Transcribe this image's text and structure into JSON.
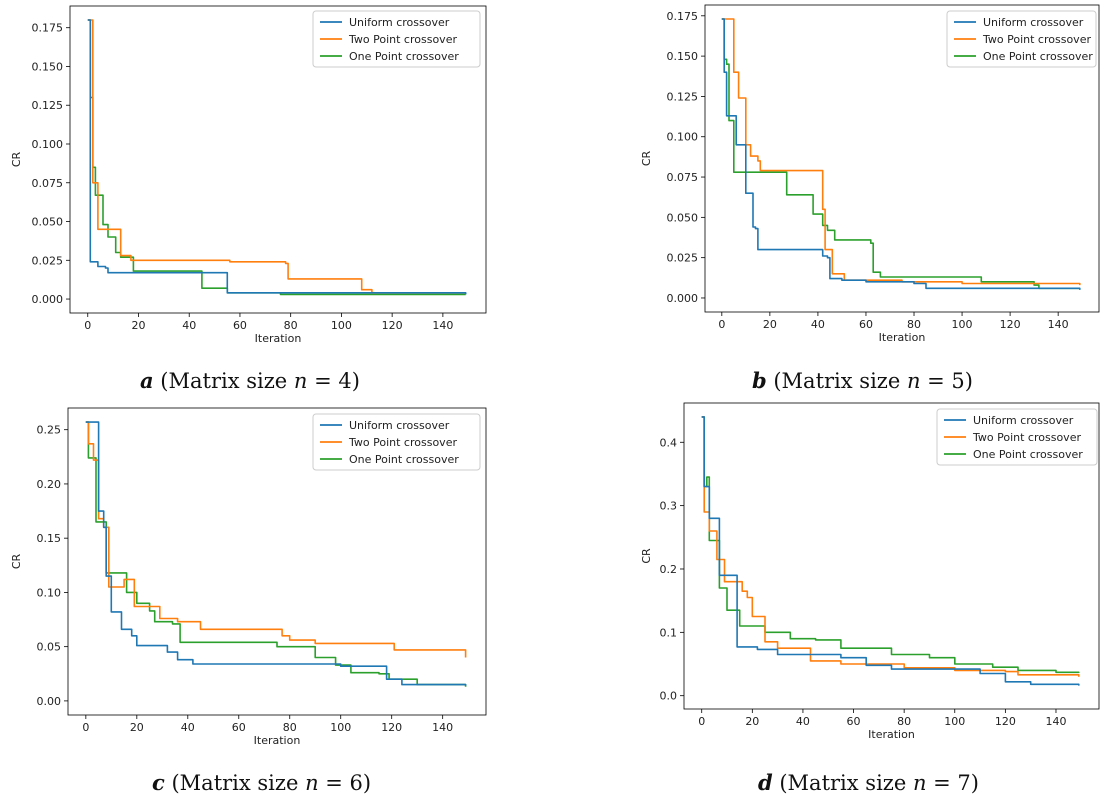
{
  "colors": {
    "Uniform crossover": "#1f77b4",
    "Two Point crossover": "#ff7f0e",
    "One Point crossover": "#2ca02c"
  },
  "chart_data": [
    {
      "type": "line",
      "xlabel": "Iteration",
      "ylabel": "CR",
      "xlim": [
        -7,
        157
      ],
      "ylim": [
        -0.009,
        0.189
      ],
      "xticks": [
        0,
        20,
        40,
        60,
        80,
        100,
        120,
        140
      ],
      "yticks": [
        0.0,
        0.025,
        0.05,
        0.075,
        0.1,
        0.125,
        0.15,
        0.175
      ],
      "ytick_decimals": 3,
      "legend": "top-right",
      "caption": {
        "letter": "a",
        "text": " (Matrix size ",
        "var": "n",
        "suffix": " = 4)"
      },
      "series": [
        {
          "name": "Uniform crossover",
          "points": [
            [
              0,
              0.18
            ],
            [
              1,
              0.024
            ],
            [
              3,
              0.024
            ],
            [
              4,
              0.021
            ],
            [
              7,
              0.02
            ],
            [
              8,
              0.017
            ],
            [
              54,
              0.017
            ],
            [
              55,
              0.004
            ],
            [
              149,
              0.003
            ]
          ]
        },
        {
          "name": "Two Point crossover",
          "points": [
            [
              0,
              0.18
            ],
            [
              2,
              0.075
            ],
            [
              4,
              0.045
            ],
            [
              12,
              0.045
            ],
            [
              13,
              0.028
            ],
            [
              17,
              0.025
            ],
            [
              55,
              0.025
            ],
            [
              56,
              0.024
            ],
            [
              78,
              0.023
            ],
            [
              79,
              0.013
            ],
            [
              107,
              0.013
            ],
            [
              108,
              0.006
            ],
            [
              112,
              0.004
            ],
            [
              149,
              0.004
            ]
          ]
        },
        {
          "name": "One Point crossover",
          "points": [
            [
              0,
              0.18
            ],
            [
              1,
              0.13
            ],
            [
              2,
              0.085
            ],
            [
              3,
              0.067
            ],
            [
              5,
              0.067
            ],
            [
              6,
              0.048
            ],
            [
              8,
              0.04
            ],
            [
              10,
              0.04
            ],
            [
              11,
              0.03
            ],
            [
              13,
              0.027
            ],
            [
              17,
              0.027
            ],
            [
              18,
              0.018
            ],
            [
              44,
              0.018
            ],
            [
              45,
              0.007
            ],
            [
              54,
              0.007
            ],
            [
              55,
              0.004
            ],
            [
              75,
              0.004
            ],
            [
              76,
              0.003
            ],
            [
              149,
              0.003
            ]
          ]
        }
      ]
    },
    {
      "type": "line",
      "xlabel": "Iteration",
      "ylabel": "CR",
      "xlim": [
        -7,
        157
      ],
      "ylim": [
        -0.0087,
        0.1817
      ],
      "xticks": [
        0,
        20,
        40,
        60,
        80,
        100,
        120,
        140
      ],
      "yticks": [
        0.0,
        0.025,
        0.05,
        0.075,
        0.1,
        0.125,
        0.15,
        0.175
      ],
      "ytick_decimals": 3,
      "legend": "top-right",
      "caption": {
        "letter": "b",
        "text": " (Matrix size ",
        "var": "n",
        "suffix": " = 5)"
      },
      "series": [
        {
          "name": "Uniform crossover",
          "points": [
            [
              0,
              0.173
            ],
            [
              1,
              0.14
            ],
            [
              2,
              0.113
            ],
            [
              5,
              0.113
            ],
            [
              6,
              0.095
            ],
            [
              9,
              0.095
            ],
            [
              10,
              0.065
            ],
            [
              12,
              0.065
            ],
            [
              13,
              0.044
            ],
            [
              14,
              0.043
            ],
            [
              15,
              0.03
            ],
            [
              16,
              0.03
            ],
            [
              41,
              0.03
            ],
            [
              42,
              0.026
            ],
            [
              44,
              0.025
            ],
            [
              45,
              0.012
            ],
            [
              50,
              0.011
            ],
            [
              60,
              0.01
            ],
            [
              80,
              0.009
            ],
            [
              85,
              0.006
            ],
            [
              110,
              0.006
            ],
            [
              149,
              0.005
            ]
          ]
        },
        {
          "name": "Two Point crossover",
          "points": [
            [
              0,
              0.173
            ],
            [
              3,
              0.173
            ],
            [
              5,
              0.14
            ],
            [
              7,
              0.124
            ],
            [
              9,
              0.124
            ],
            [
              10,
              0.095
            ],
            [
              12,
              0.088
            ],
            [
              15,
              0.085
            ],
            [
              16,
              0.079
            ],
            [
              40,
              0.079
            ],
            [
              42,
              0.055
            ],
            [
              43,
              0.03
            ],
            [
              46,
              0.015
            ],
            [
              50,
              0.015
            ],
            [
              51,
              0.011
            ],
            [
              60,
              0.011
            ],
            [
              75,
              0.01
            ],
            [
              100,
              0.009
            ],
            [
              149,
              0.008
            ]
          ]
        },
        {
          "name": "One Point crossover",
          "points": [
            [
              0,
              0.173
            ],
            [
              1,
              0.148
            ],
            [
              2,
              0.145
            ],
            [
              3,
              0.11
            ],
            [
              5,
              0.078
            ],
            [
              26,
              0.078
            ],
            [
              27,
              0.064
            ],
            [
              34,
              0.064
            ],
            [
              38,
              0.052
            ],
            [
              41,
              0.052
            ],
            [
              42,
              0.045
            ],
            [
              44,
              0.042
            ],
            [
              47,
              0.036
            ],
            [
              58,
              0.036
            ],
            [
              62,
              0.034
            ],
            [
              63,
              0.016
            ],
            [
              66,
              0.013
            ],
            [
              105,
              0.013
            ],
            [
              108,
              0.01
            ],
            [
              130,
              0.008
            ],
            [
              132,
              0.006
            ],
            [
              149,
              0.006
            ]
          ]
        }
      ]
    },
    {
      "type": "line",
      "xlabel": "Iteration",
      "ylabel": "CR",
      "xlim": [
        -7,
        157
      ],
      "ylim": [
        -0.013,
        0.27
      ],
      "xticks": [
        0,
        20,
        40,
        60,
        80,
        100,
        120,
        140
      ],
      "yticks": [
        0.0,
        0.05,
        0.1,
        0.15,
        0.2,
        0.25
      ],
      "ytick_decimals": 2,
      "legend": "top-right",
      "caption": {
        "letter": "c",
        "text": " (Matrix size ",
        "var": "n",
        "suffix": " = 6)"
      },
      "series": [
        {
          "name": "Uniform crossover",
          "points": [
            [
              0,
              0.257
            ],
            [
              4,
              0.257
            ],
            [
              5,
              0.175
            ],
            [
              7,
              0.16
            ],
            [
              8,
              0.115
            ],
            [
              10,
              0.082
            ],
            [
              13,
              0.082
            ],
            [
              14,
              0.066
            ],
            [
              18,
              0.06
            ],
            [
              20,
              0.051
            ],
            [
              28,
              0.051
            ],
            [
              32,
              0.045
            ],
            [
              36,
              0.038
            ],
            [
              42,
              0.034
            ],
            [
              80,
              0.034
            ],
            [
              100,
              0.032
            ],
            [
              118,
              0.02
            ],
            [
              124,
              0.015
            ],
            [
              149,
              0.014
            ]
          ]
        },
        {
          "name": "Two Point crossover",
          "points": [
            [
              0,
              0.257
            ],
            [
              1,
              0.237
            ],
            [
              3,
              0.222
            ],
            [
              5,
              0.168
            ],
            [
              7,
              0.16
            ],
            [
              9,
              0.105
            ],
            [
              14,
              0.105
            ],
            [
              15,
              0.112
            ],
            [
              17,
              0.112
            ],
            [
              19,
              0.087
            ],
            [
              28,
              0.087
            ],
            [
              29,
              0.076
            ],
            [
              36,
              0.073
            ],
            [
              40,
              0.073
            ],
            [
              45,
              0.066
            ],
            [
              75,
              0.066
            ],
            [
              77,
              0.06
            ],
            [
              80,
              0.056
            ],
            [
              90,
              0.053
            ],
            [
              119,
              0.053
            ],
            [
              121,
              0.047
            ],
            [
              147,
              0.047
            ],
            [
              149,
              0.04
            ]
          ]
        },
        {
          "name": "One Point crossover",
          "points": [
            [
              0,
              0.257
            ],
            [
              1,
              0.224
            ],
            [
              3,
              0.224
            ],
            [
              4,
              0.165
            ],
            [
              7,
              0.165
            ],
            [
              8,
              0.118
            ],
            [
              14,
              0.118
            ],
            [
              16,
              0.1
            ],
            [
              20,
              0.09
            ],
            [
              25,
              0.083
            ],
            [
              27,
              0.073
            ],
            [
              34,
              0.071
            ],
            [
              37,
              0.054
            ],
            [
              55,
              0.054
            ],
            [
              75,
              0.05
            ],
            [
              90,
              0.04
            ],
            [
              98,
              0.033
            ],
            [
              104,
              0.026
            ],
            [
              115,
              0.025
            ],
            [
              119,
              0.02
            ],
            [
              130,
              0.015
            ],
            [
              149,
              0.013
            ]
          ]
        }
      ]
    },
    {
      "type": "line",
      "xlabel": "Iteration",
      "ylabel": "CR",
      "xlim": [
        -7,
        157
      ],
      "ylim": [
        -0.021,
        0.462
      ],
      "xticks": [
        0,
        20,
        40,
        60,
        80,
        100,
        120,
        140
      ],
      "yticks": [
        0.0,
        0.1,
        0.2,
        0.3,
        0.4
      ],
      "ytick_decimals": 1,
      "legend": "top-right",
      "caption": {
        "letter": "d",
        "text": " (Matrix size ",
        "var": "n",
        "suffix": " = 7)"
      },
      "series": [
        {
          "name": "Uniform crossover",
          "points": [
            [
              0,
              0.44
            ],
            [
              1,
              0.33
            ],
            [
              3,
              0.28
            ],
            [
              5,
              0.28
            ],
            [
              7,
              0.19
            ],
            [
              13,
              0.19
            ],
            [
              14,
              0.077
            ],
            [
              20,
              0.077
            ],
            [
              22,
              0.073
            ],
            [
              30,
              0.065
            ],
            [
              45,
              0.065
            ],
            [
              55,
              0.06
            ],
            [
              65,
              0.048
            ],
            [
              75,
              0.042
            ],
            [
              95,
              0.042
            ],
            [
              110,
              0.035
            ],
            [
              120,
              0.022
            ],
            [
              130,
              0.018
            ],
            [
              145,
              0.018
            ],
            [
              149,
              0.016
            ]
          ]
        },
        {
          "name": "Two Point crossover",
          "points": [
            [
              0,
              0.44
            ],
            [
              1,
              0.29
            ],
            [
              3,
              0.26
            ],
            [
              5,
              0.26
            ],
            [
              6,
              0.215
            ],
            [
              9,
              0.18
            ],
            [
              13,
              0.18
            ],
            [
              16,
              0.165
            ],
            [
              18,
              0.155
            ],
            [
              20,
              0.125
            ],
            [
              25,
              0.085
            ],
            [
              30,
              0.075
            ],
            [
              40,
              0.075
            ],
            [
              43,
              0.055
            ],
            [
              55,
              0.05
            ],
            [
              70,
              0.05
            ],
            [
              80,
              0.044
            ],
            [
              100,
              0.04
            ],
            [
              120,
              0.038
            ],
            [
              125,
              0.033
            ],
            [
              149,
              0.03
            ]
          ]
        },
        {
          "name": "One Point crossover",
          "points": [
            [
              0,
              0.44
            ],
            [
              1,
              0.33
            ],
            [
              2,
              0.345
            ],
            [
              3,
              0.245
            ],
            [
              5,
              0.245
            ],
            [
              7,
              0.17
            ],
            [
              10,
              0.135
            ],
            [
              14,
              0.135
            ],
            [
              15,
              0.11
            ],
            [
              25,
              0.1
            ],
            [
              30,
              0.1
            ],
            [
              35,
              0.09
            ],
            [
              45,
              0.088
            ],
            [
              55,
              0.075
            ],
            [
              70,
              0.075
            ],
            [
              75,
              0.065
            ],
            [
              90,
              0.06
            ],
            [
              100,
              0.05
            ],
            [
              115,
              0.045
            ],
            [
              125,
              0.04
            ],
            [
              140,
              0.037
            ],
            [
              149,
              0.036
            ]
          ]
        }
      ]
    }
  ]
}
